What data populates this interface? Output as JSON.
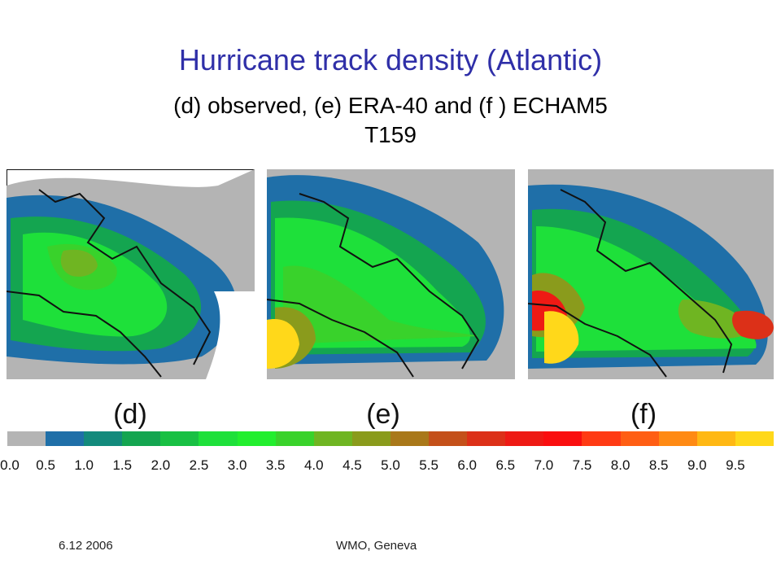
{
  "slide": {
    "title": "Hurricane track density (Atlantic)",
    "subtitle_line1": "(d) observed,  (e) ERA-40 and (f ) ECHAM5",
    "subtitle_line2": "T159"
  },
  "panels": [
    {
      "label": "(d)"
    },
    {
      "label": "(e)"
    },
    {
      "label": "(f)"
    }
  ],
  "colorbar": {
    "colors": [
      "#b4b4b4",
      "#1f6fa8",
      "#138a7c",
      "#14a550",
      "#18c043",
      "#1ee03a",
      "#22ee2e",
      "#39d22b",
      "#6fb522",
      "#8a9b1c",
      "#a9781a",
      "#c4501a",
      "#dc3018",
      "#ee1a14",
      "#fa0e0f",
      "#ff3a14",
      "#ff5e14",
      "#ff8a14",
      "#ffb814",
      "#ffd81a"
    ],
    "ticks": [
      "0.0",
      "0.5",
      "1.0",
      "1.5",
      "2.0",
      "2.5",
      "3.0",
      "3.5",
      "4.0",
      "4.5",
      "5.0",
      "5.5",
      "6.0",
      "6.5",
      "7.0",
      "7.5",
      "8.0",
      "8.5",
      "9.0",
      "9.5"
    ]
  },
  "footer": {
    "date": "6.12 2006",
    "venue": "WMO, Geneva"
  }
}
